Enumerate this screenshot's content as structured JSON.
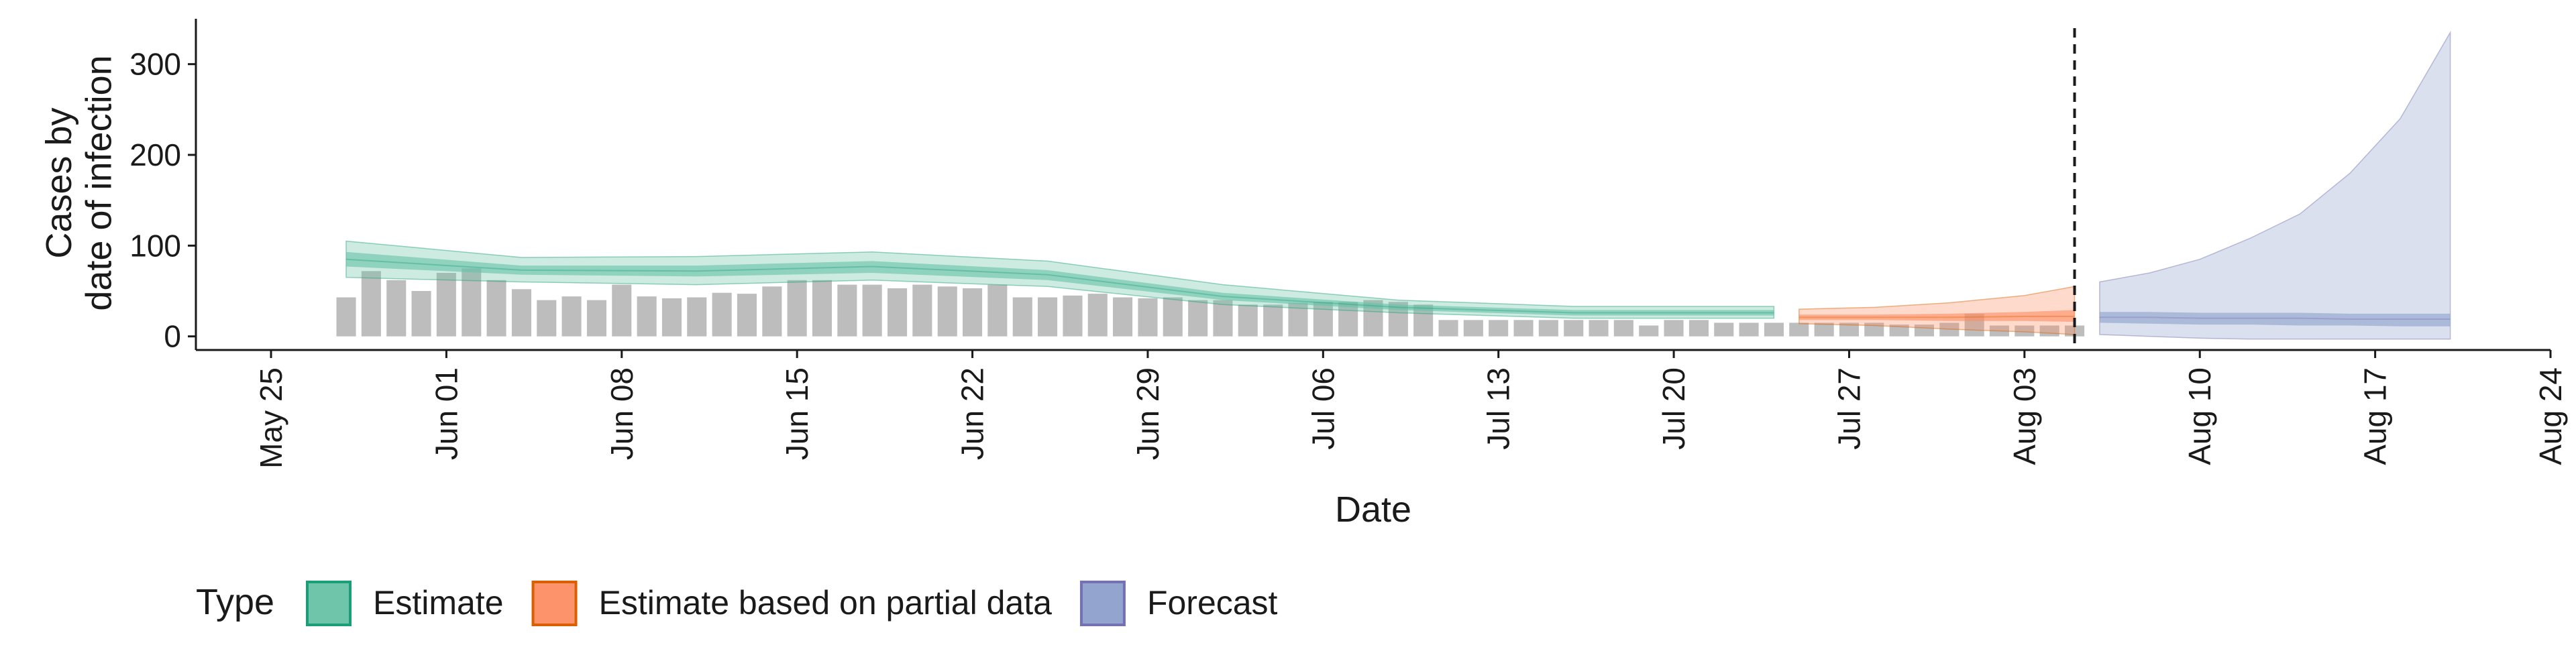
{
  "chart_data": {
    "type": "bar",
    "title": "",
    "xlabel": "Date",
    "ylabel_lines": [
      "Cases by",
      "date of infection"
    ],
    "x_range": [
      "2020-05-22",
      "2020-08-24"
    ],
    "ylim": [
      -15,
      350
    ],
    "y_ticks": [
      0,
      100,
      200,
      300
    ],
    "y_tick_labels": [
      "0",
      "100",
      "200",
      "300"
    ],
    "x_ticks": [
      "2020-05-25",
      "2020-06-01",
      "2020-06-08",
      "2020-06-15",
      "2020-06-22",
      "2020-06-29",
      "2020-07-06",
      "2020-07-13",
      "2020-07-20",
      "2020-07-27",
      "2020-08-03",
      "2020-08-10",
      "2020-08-17",
      "2020-08-24"
    ],
    "x_tick_labels": [
      "May 25",
      "Jun 01",
      "Jun 08",
      "Jun 15",
      "Jun 22",
      "Jun 29",
      "Jul 06",
      "Jul 13",
      "Jul 20",
      "Jul 27",
      "Aug 03",
      "Aug 10",
      "Aug 17",
      "Aug 24"
    ],
    "grid": false,
    "bar_color": "#bdbdbd",
    "reported_cases": {
      "start_date": "2020-05-28",
      "values": [
        43,
        72,
        62,
        50,
        70,
        75,
        62,
        52,
        40,
        44,
        40,
        57,
        44,
        42,
        43,
        48,
        47,
        55,
        62,
        62,
        57,
        57,
        53,
        57,
        55,
        53,
        57,
        43,
        43,
        45,
        47,
        43,
        42,
        43,
        40,
        40,
        35,
        35,
        37,
        38,
        38,
        40,
        38,
        35,
        18,
        18,
        18,
        18,
        18,
        18,
        18,
        18,
        12,
        18,
        18,
        15,
        15,
        15,
        15,
        15,
        15,
        15,
        13,
        13,
        15,
        25,
        12,
        12,
        12,
        12
      ]
    },
    "forecast_start_line": "2020-08-05",
    "series": [
      {
        "name": "Estimate",
        "color": "#1b9e77",
        "fill": "#66c2a5",
        "dates": [
          "2020-05-28",
          "2020-06-04",
          "2020-06-11",
          "2020-06-18",
          "2020-06-25",
          "2020-07-02",
          "2020-07-09",
          "2020-07-16",
          "2020-07-24"
        ],
        "outer_upper": [
          105,
          87,
          88,
          93,
          83,
          57,
          40,
          33,
          33
        ],
        "inner_upper": [
          93,
          78,
          78,
          83,
          73,
          48,
          35,
          29,
          29
        ],
        "median": [
          85,
          73,
          72,
          77,
          68,
          44,
          32,
          26,
          26
        ],
        "inner_lower": [
          77,
          68,
          66,
          70,
          62,
          40,
          29,
          23,
          23
        ],
        "outer_lower": [
          65,
          60,
          57,
          62,
          55,
          35,
          26,
          20,
          20
        ]
      },
      {
        "name": "Estimate based on partial data",
        "color": "#d95f02",
        "fill": "#fc8d62",
        "dates": [
          "2020-07-25",
          "2020-07-28",
          "2020-07-31",
          "2020-08-03",
          "2020-08-05"
        ],
        "outer_upper": [
          30,
          32,
          37,
          45,
          55
        ],
        "inner_upper": [
          24,
          24,
          25,
          27,
          29
        ],
        "median": [
          21,
          21,
          21,
          22,
          22
        ],
        "inner_lower": [
          18,
          18,
          17,
          17,
          16
        ],
        "outer_lower": [
          14,
          12,
          8,
          5,
          2
        ]
      },
      {
        "name": "Forecast",
        "color": "#7570b3",
        "fill": "#8da0cb",
        "dates": [
          "2020-08-06",
          "2020-08-08",
          "2020-08-10",
          "2020-08-12",
          "2020-08-14",
          "2020-08-16",
          "2020-08-18",
          "2020-08-20"
        ],
        "outer_upper": [
          60,
          70,
          85,
          108,
          135,
          180,
          240,
          335
        ],
        "inner_upper": [
          27,
          27,
          26,
          26,
          26,
          25,
          25,
          25
        ],
        "median": [
          21,
          21,
          20,
          20,
          20,
          19,
          19,
          19
        ],
        "inner_lower": [
          15,
          14,
          13,
          13,
          12,
          12,
          11,
          11
        ],
        "outer_lower": [
          2,
          0,
          -2,
          -3,
          -3,
          -3,
          -3,
          -3
        ]
      }
    ],
    "legend": {
      "title": "Type",
      "position": "bottom-left",
      "items": [
        "Estimate",
        "Estimate based on partial data",
        "Forecast"
      ]
    }
  }
}
